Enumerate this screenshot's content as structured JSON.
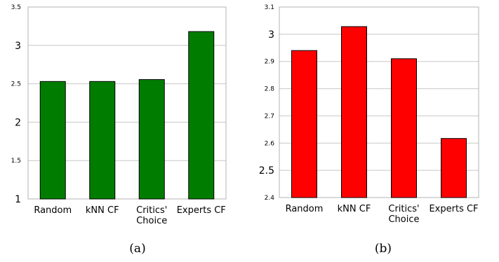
{
  "chart_data": [
    {
      "type": "bar",
      "panel_label": "(a)",
      "categories": [
        "Random",
        "kNN CF",
        "Critics' Choice",
        "Experts CF"
      ],
      "category_lines": [
        [
          "Random"
        ],
        [
          "kNN CF"
        ],
        [
          "Critics'",
          "Choice"
        ],
        [
          "Experts CF"
        ]
      ],
      "values": [
        2.53,
        2.53,
        2.555,
        3.18
      ],
      "ylim": [
        1,
        3.5
      ],
      "yticks": [
        "1",
        "1.5",
        "2",
        "2.5",
        "3",
        "3.5"
      ],
      "ytick_values": [
        1,
        1.5,
        2,
        2.5,
        3,
        3.5
      ],
      "ytick_emphasis": [
        true,
        false,
        true,
        false,
        true,
        false
      ],
      "grid": true,
      "bar_color": "#007d00"
    },
    {
      "type": "bar",
      "panel_label": "(b)",
      "categories": [
        "Random",
        "kNN CF",
        "Critics' Choice",
        "Experts CF"
      ],
      "category_lines": [
        [
          "Random"
        ],
        [
          "kNN CF"
        ],
        [
          "Critics'",
          "Choice"
        ],
        [
          "Experts CF"
        ]
      ],
      "values": [
        2.94,
        3.028,
        2.91,
        2.617
      ],
      "ylim": [
        2.4,
        3.1
      ],
      "yticks": [
        "2.4",
        "2.5",
        "2.6",
        "2.7",
        "2.8",
        "2.9",
        "3",
        "3.1"
      ],
      "ytick_values": [
        2.4,
        2.5,
        2.6,
        2.7,
        2.8,
        2.9,
        3,
        3.1
      ],
      "ytick_emphasis": [
        false,
        true,
        false,
        false,
        false,
        false,
        true,
        false
      ],
      "grid": true,
      "bar_color": "#ff0000"
    }
  ]
}
